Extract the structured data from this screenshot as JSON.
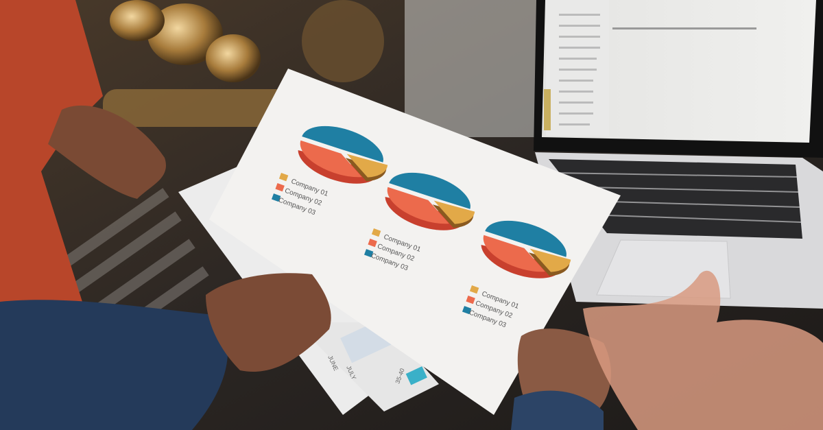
{
  "scene": {
    "colors": {
      "teal": "#1f7fa3",
      "orange": "#ec6a4c",
      "orange_side": "#c8402e",
      "yellow": "#e2a948",
      "paper": "#f3f2f0",
      "laptop_silver": "#d9d9db",
      "sleeve_red": "#b8462a",
      "sleeve_blue": "#243a5a"
    }
  },
  "report_sheet": {
    "pie_charts": [
      {
        "legend": [
          "Company 01",
          "Company 02",
          "Company 03"
        ]
      },
      {
        "legend": [
          "Company 01",
          "Company 02",
          "Company 03"
        ]
      },
      {
        "legend": [
          "Company 01",
          "Company 02",
          "Company 03"
        ]
      }
    ]
  },
  "lower_sheet": {
    "labels": [
      "JUNE",
      "JULY",
      "35-40"
    ]
  }
}
